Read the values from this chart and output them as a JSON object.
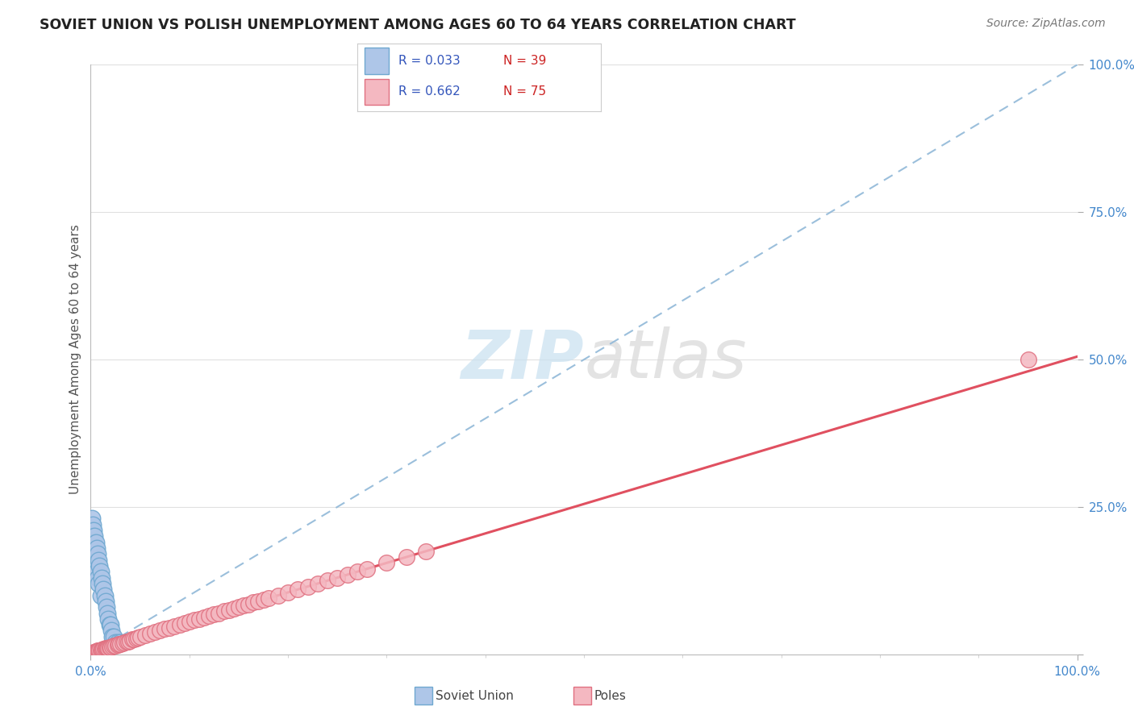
{
  "title": "SOVIET UNION VS POLISH UNEMPLOYMENT AMONG AGES 60 TO 64 YEARS CORRELATION CHART",
  "source": "Source: ZipAtlas.com",
  "ylabel": "Unemployment Among Ages 60 to 64 years",
  "xlim": [
    0,
    1.0
  ],
  "ylim": [
    0,
    1.0
  ],
  "ytick_values": [
    0.0,
    0.25,
    0.5,
    0.75,
    1.0
  ],
  "ytick_labels": [
    "0.0%",
    "25.0%",
    "50.0%",
    "75.0%",
    "100.0%"
  ],
  "series1_label": "Soviet Union",
  "series1_R": "0.033",
  "series1_N": "39",
  "series1_color": "#aec6e8",
  "series1_edge_color": "#6fa8d0",
  "series1_line_color": "#90b8d8",
  "series2_label": "Poles",
  "series2_R": "0.662",
  "series2_N": "75",
  "series2_color": "#f4b8c1",
  "series2_edge_color": "#e07080",
  "series2_line_color": "#e05060",
  "legend_R_color": "#3355bb",
  "legend_N_color": "#cc2222",
  "background_color": "#ffffff",
  "grid_color": "#e0e0e0",
  "title_color": "#222222",
  "source_color": "#777777",
  "tick_color": "#4488cc",
  "ylabel_color": "#555555",
  "soviet_x": [
    0.001,
    0.001,
    0.001,
    0.002,
    0.002,
    0.002,
    0.002,
    0.003,
    0.003,
    0.003,
    0.004,
    0.004,
    0.005,
    0.005,
    0.006,
    0.006,
    0.007,
    0.007,
    0.008,
    0.008,
    0.009,
    0.01,
    0.01,
    0.011,
    0.012,
    0.013,
    0.014,
    0.015,
    0.016,
    0.017,
    0.018,
    0.019,
    0.02,
    0.021,
    0.022,
    0.023,
    0.025,
    0.027,
    0.03
  ],
  "soviet_y": [
    0.23,
    0.21,
    0.19,
    0.22,
    0.2,
    0.18,
    0.16,
    0.21,
    0.19,
    0.17,
    0.2,
    0.17,
    0.19,
    0.16,
    0.18,
    0.14,
    0.17,
    0.13,
    0.16,
    0.12,
    0.15,
    0.14,
    0.1,
    0.13,
    0.12,
    0.11,
    0.1,
    0.09,
    0.08,
    0.07,
    0.06,
    0.05,
    0.05,
    0.04,
    0.03,
    0.03,
    0.02,
    0.02,
    0.02
  ],
  "poles_x": [
    0.001,
    0.002,
    0.003,
    0.005,
    0.006,
    0.007,
    0.008,
    0.009,
    0.01,
    0.011,
    0.012,
    0.013,
    0.014,
    0.015,
    0.016,
    0.017,
    0.018,
    0.019,
    0.02,
    0.022,
    0.023,
    0.025,
    0.027,
    0.028,
    0.03,
    0.032,
    0.034,
    0.036,
    0.038,
    0.04,
    0.042,
    0.044,
    0.046,
    0.048,
    0.05,
    0.055,
    0.06,
    0.065,
    0.07,
    0.075,
    0.08,
    0.085,
    0.09,
    0.095,
    0.1,
    0.105,
    0.11,
    0.115,
    0.12,
    0.125,
    0.13,
    0.135,
    0.14,
    0.145,
    0.15,
    0.155,
    0.16,
    0.165,
    0.17,
    0.175,
    0.18,
    0.19,
    0.2,
    0.21,
    0.22,
    0.23,
    0.24,
    0.25,
    0.26,
    0.27,
    0.28,
    0.3,
    0.32,
    0.34,
    0.95
  ],
  "poles_y": [
    0.003,
    0.003,
    0.004,
    0.005,
    0.005,
    0.006,
    0.006,
    0.007,
    0.007,
    0.008,
    0.008,
    0.009,
    0.009,
    0.01,
    0.01,
    0.011,
    0.011,
    0.012,
    0.012,
    0.013,
    0.014,
    0.015,
    0.016,
    0.017,
    0.018,
    0.019,
    0.02,
    0.021,
    0.022,
    0.023,
    0.025,
    0.026,
    0.027,
    0.028,
    0.03,
    0.033,
    0.035,
    0.038,
    0.04,
    0.043,
    0.045,
    0.048,
    0.05,
    0.053,
    0.055,
    0.058,
    0.06,
    0.063,
    0.065,
    0.068,
    0.07,
    0.073,
    0.075,
    0.078,
    0.08,
    0.083,
    0.085,
    0.088,
    0.09,
    0.093,
    0.095,
    0.1,
    0.105,
    0.11,
    0.115,
    0.12,
    0.125,
    0.13,
    0.135,
    0.14,
    0.145,
    0.155,
    0.165,
    0.175,
    0.5
  ],
  "soviet_slope": 1.0,
  "soviet_intercept": 0.0,
  "poles_slope": 0.5,
  "poles_intercept": 0.005
}
